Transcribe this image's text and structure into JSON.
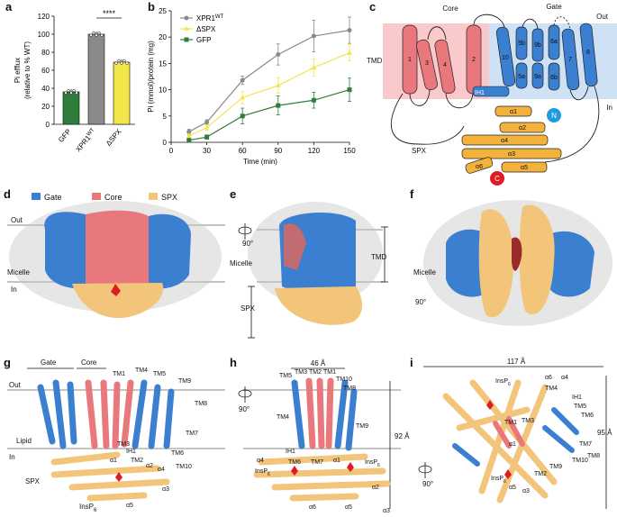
{
  "panels": {
    "a": "a",
    "b": "b",
    "c": "c",
    "d": "d",
    "e": "e",
    "f": "f",
    "g": "g",
    "h": "h",
    "i": "i"
  },
  "colors": {
    "gate": "#3b7fd1",
    "core": "#e8787c",
    "spx": "#f2b23c",
    "gfp": "#2e7d3a",
    "wt": "#8a8a8a",
    "dspx": "#f2e64a",
    "membrane_out": "#f9c9cb",
    "membrane_in": "#cfe2f5",
    "red": "#e01b24"
  },
  "chart_data": [
    {
      "type": "bar",
      "categories": [
        "GFP",
        "XPR1WT",
        "ΔSPX"
      ],
      "category_labels": [
        "GFP",
        "XPR1",
        "ΔSPX"
      ],
      "category_sup": [
        "",
        "WT",
        ""
      ],
      "values": [
        36,
        100,
        69
      ],
      "ylabel_line1": "Pi efflux",
      "ylabel_line2": "(relative to % WT)",
      "ylim": [
        0,
        120
      ],
      "yticks": [
        0,
        20,
        40,
        60,
        80,
        100,
        120
      ],
      "significance": "****"
    },
    {
      "type": "line",
      "x": [
        15,
        30,
        60,
        90,
        120,
        150
      ],
      "xticks": [
        0,
        30,
        60,
        90,
        120,
        150
      ],
      "yticks": [
        0,
        5,
        10,
        15,
        20,
        25
      ],
      "xlim": [
        0,
        150
      ],
      "ylim": [
        0,
        25
      ],
      "xlabel": "Time (min)",
      "ylabel": "Pi (mmol)/protein (mg)",
      "series": [
        {
          "name": "XPR1",
          "sup": "WT",
          "values": [
            2.0,
            3.8,
            11.8,
            16.7,
            20.2,
            21.3
          ],
          "err": [
            0.5,
            0.5,
            0.8,
            2.0,
            3.0,
            2.5
          ]
        },
        {
          "name": "ΔSPX",
          "sup": "",
          "values": [
            1.2,
            2.8,
            8.5,
            10.8,
            14.2,
            17.0
          ],
          "err": [
            0.4,
            0.5,
            1.2,
            1.5,
            1.6,
            1.5
          ]
        },
        {
          "name": "GFP",
          "sup": "",
          "values": [
            0.4,
            1.0,
            5.0,
            7.0,
            8.0,
            10.0
          ],
          "err": [
            0.3,
            0.4,
            1.5,
            1.8,
            1.5,
            2.2
          ]
        }
      ]
    }
  ],
  "panel_c": {
    "core": "Core",
    "gate": "Gate",
    "out": "Out",
    "in": "In",
    "tmd": "TMD",
    "spx": "SPX",
    "ih1": "IH1",
    "n": "N",
    "c": "C",
    "helices": [
      "1",
      "3",
      "4",
      "2",
      "10",
      "5b",
      "9b",
      "6a",
      "7",
      "8",
      "5a",
      "9a",
      "6b"
    ],
    "spx_helices": [
      "α1",
      "α2",
      "α3",
      "α4",
      "α5",
      "α6"
    ]
  },
  "panel_d": {
    "legend": [
      "Gate",
      "Core",
      "SPX"
    ],
    "out": "Out",
    "micelle": "Micelle",
    "in": "In"
  },
  "panel_e": {
    "rot": "90°",
    "tmd": "TMD",
    "micelle": "Micelle",
    "spx": "SPX"
  },
  "panel_f": {
    "micelle": "Micelle",
    "rot": "90°"
  },
  "panel_g": {
    "gate": "Gate",
    "core": "Core",
    "out": "Out",
    "in": "In",
    "lipid": "Lipid",
    "spx": "SPX",
    "tm_labels": [
      "TM1",
      "TM4",
      "TM5",
      "TM9",
      "TM8",
      "TM7",
      "TM6",
      "TM10",
      "TM3",
      "IH1",
      "TM2",
      "α1",
      "α2",
      "α4",
      "α3",
      "α5"
    ],
    "insp": "InsP",
    "insp_sub": "6"
  },
  "panel_h": {
    "dim": "46 Å",
    "rot": "90°",
    "height": "92 Å",
    "tm_labels": [
      "TM5",
      "TM3",
      "TM2",
      "TM1",
      "TM10",
      "TM8",
      "TM4",
      "TM9",
      "IH1",
      "TM6",
      "TM7",
      "α1",
      "α4",
      "α2",
      "α6",
      "α5",
      "α3"
    ],
    "insp": "InsP",
    "insp_sub": "6"
  },
  "panel_i": {
    "dim": "117 Å",
    "rot": "90°",
    "height": "95 Å",
    "tm_labels": [
      "α6",
      "α4",
      "IH1",
      "TM5",
      "TM6",
      "TM1",
      "TM3",
      "TM4",
      "TM7",
      "TM8",
      "α1",
      "TM9",
      "TM10",
      "TM2",
      "α5",
      "α3"
    ],
    "insp": "InsP",
    "insp_sub": "6"
  }
}
